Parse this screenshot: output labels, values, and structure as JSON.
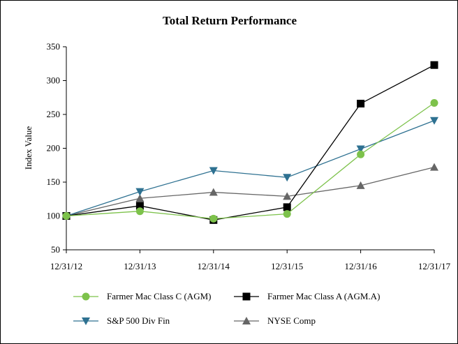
{
  "chart_data": {
    "type": "line",
    "title": "Total Return Performance",
    "ylabel": "Index Value",
    "xlabel": "",
    "ylim": [
      50,
      350
    ],
    "yticks": [
      50,
      100,
      150,
      200,
      250,
      300,
      350
    ],
    "categories": [
      "12/31/12",
      "12/31/13",
      "12/31/14",
      "12/31/15",
      "12/31/16",
      "12/31/17"
    ],
    "legend_position": "bottom",
    "grid": false,
    "series": [
      {
        "name": "Farmer Mac Class C (AGM)",
        "marker": "circle",
        "color": "#7dc24b",
        "values": [
          100,
          107,
          96,
          103,
          191,
          267
        ]
      },
      {
        "name": "Farmer Mac Class A (AGM.A)",
        "marker": "square",
        "color": "#000000",
        "values": [
          100,
          115,
          94,
          113,
          266,
          323
        ]
      },
      {
        "name": "S&P 500 Div Fin",
        "marker": "triangle-down",
        "color": "#2e7191",
        "values": [
          100,
          136,
          167,
          157,
          199,
          241
        ]
      },
      {
        "name": "NYSE Comp",
        "marker": "triangle-up",
        "color": "#666666",
        "values": [
          100,
          126,
          135,
          129,
          145,
          172
        ]
      }
    ]
  }
}
